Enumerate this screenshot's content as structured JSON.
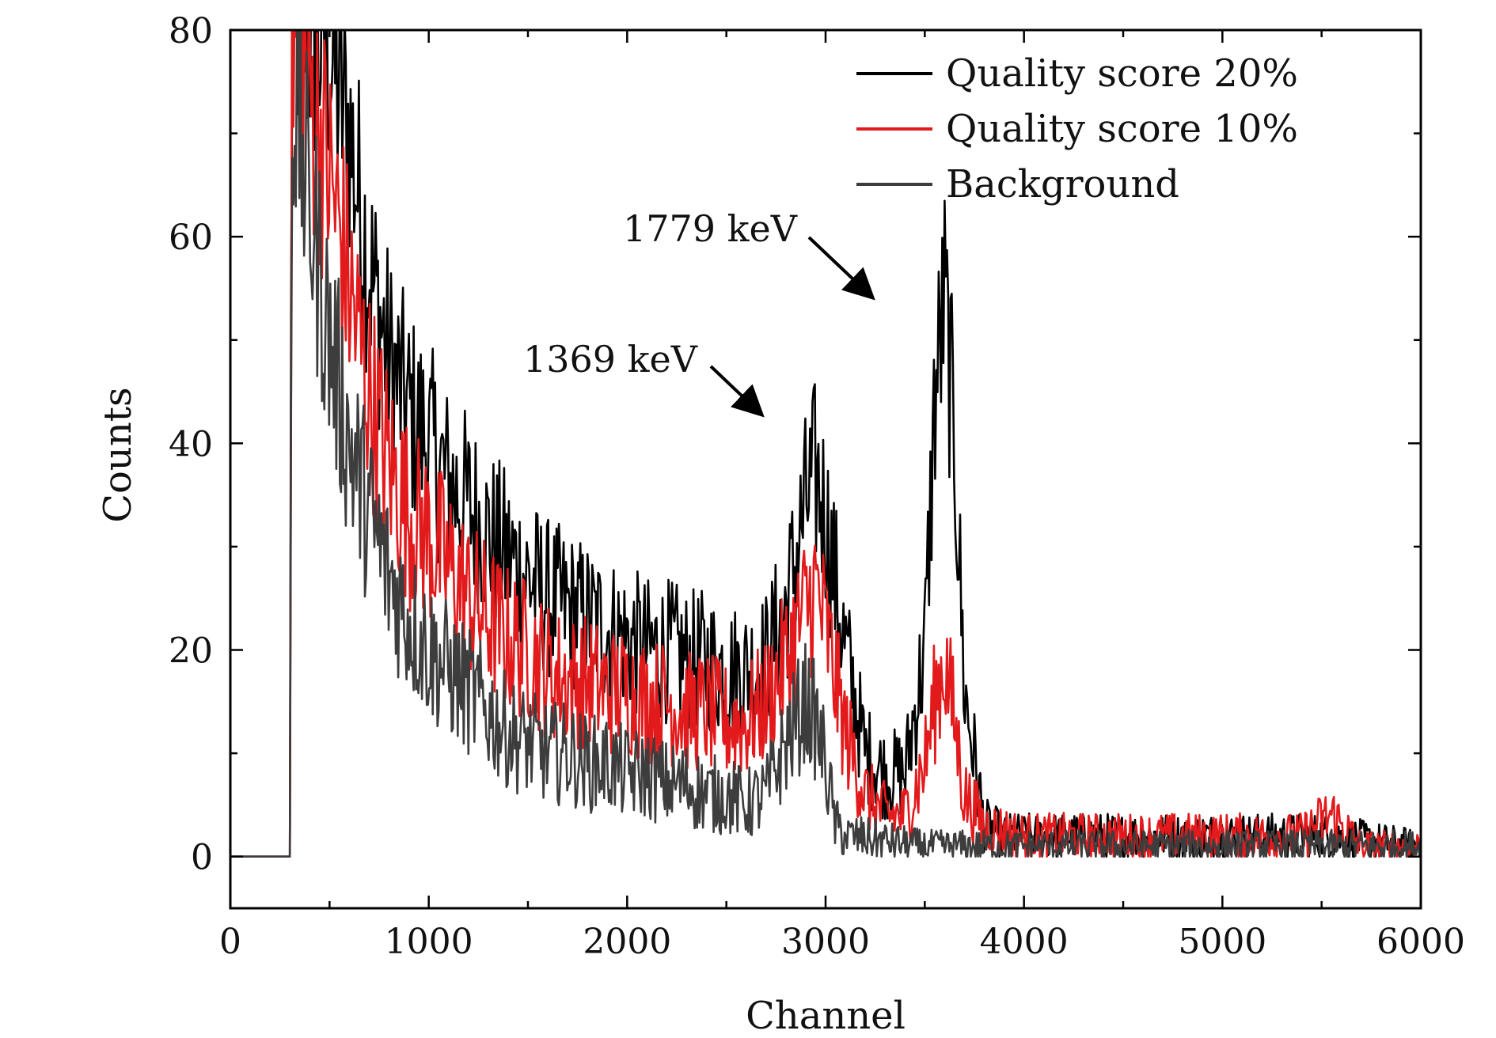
{
  "chart_data": {
    "type": "line",
    "title": "",
    "xlabel": "Channel",
    "ylabel": "Counts",
    "xlim": [
      0,
      6000
    ],
    "ylim": [
      -5,
      80
    ],
    "xticks": [
      "0",
      "1000",
      "2000",
      "3000",
      "4000",
      "5000",
      "6000"
    ],
    "yticks": [
      "0",
      "20",
      "40",
      "60",
      "80"
    ],
    "grid": false,
    "legend_position": "top-right",
    "series": [
      {
        "name": "Quality score 20%",
        "color": "#000000",
        "x": [
          0,
          300,
          310,
          400,
          500,
          600,
          700,
          800,
          900,
          1000,
          1100,
          1200,
          1300,
          1400,
          1500,
          1600,
          1700,
          1800,
          1900,
          2000,
          2100,
          2200,
          2300,
          2400,
          2500,
          2600,
          2700,
          2800,
          2900,
          2950,
          3000,
          3100,
          3200,
          3300,
          3400,
          3500,
          3550,
          3600,
          3650,
          3700,
          3800,
          3900,
          4000,
          4500,
          5000,
          5500,
          6000
        ],
        "y": [
          0,
          0,
          82,
          80,
          78,
          70,
          57,
          48,
          43,
          40,
          36,
          34,
          31,
          29,
          27,
          25,
          24,
          23,
          22,
          21,
          20,
          20,
          19,
          19,
          18,
          18,
          19,
          24,
          34,
          37,
          33,
          20,
          10,
          8,
          8,
          20,
          44,
          54,
          40,
          16,
          3,
          2,
          2,
          2,
          2,
          2,
          1
        ]
      },
      {
        "name": "Quality score 10%",
        "color": "#e31a1c",
        "x": [
          0,
          300,
          310,
          400,
          500,
          600,
          700,
          800,
          900,
          1000,
          1100,
          1200,
          1300,
          1400,
          1500,
          1600,
          1700,
          1800,
          1900,
          2000,
          2100,
          2200,
          2300,
          2400,
          2500,
          2600,
          2700,
          2800,
          2900,
          2950,
          3000,
          3100,
          3200,
          3300,
          3400,
          3500,
          3550,
          3600,
          3650,
          3700,
          3800,
          4000,
          4500,
          5000,
          5400,
          5550,
          5700,
          6000
        ],
        "y": [
          0,
          0,
          80,
          74,
          66,
          55,
          45,
          38,
          33,
          31,
          28,
          25,
          23,
          21,
          20,
          18,
          17,
          17,
          16,
          16,
          15,
          15,
          14,
          14,
          13,
          13,
          15,
          19,
          24,
          26,
          22,
          12,
          6,
          4,
          4,
          9,
          15,
          19,
          13,
          6,
          3,
          2,
          2,
          2,
          2,
          4,
          1,
          1
        ]
      },
      {
        "name": "Background",
        "color": "#3d3d3d",
        "x": [
          0,
          300,
          310,
          400,
          500,
          600,
          700,
          800,
          900,
          1000,
          1100,
          1200,
          1300,
          1400,
          1500,
          1600,
          1700,
          1800,
          1900,
          2000,
          2100,
          2200,
          2300,
          2400,
          2500,
          2600,
          2700,
          2800,
          2900,
          2950,
          3000,
          3050,
          3100,
          3500,
          4000,
          4500,
          5000,
          5500,
          6000
        ],
        "y": [
          0,
          0,
          75,
          63,
          50,
          40,
          33,
          27,
          23,
          20,
          18,
          16,
          14,
          12,
          11,
          10,
          10,
          9,
          9,
          8,
          8,
          7,
          7,
          6,
          6,
          5,
          6,
          11,
          15,
          13,
          9,
          3,
          2,
          1,
          1,
          1,
          1,
          1,
          1
        ]
      }
    ],
    "annotations": [
      {
        "text": "1779 keV",
        "target_x": 3600,
        "target_y": 54
      },
      {
        "text": "1369 keV",
        "target_x": 2960,
        "target_y": 42
      }
    ]
  }
}
